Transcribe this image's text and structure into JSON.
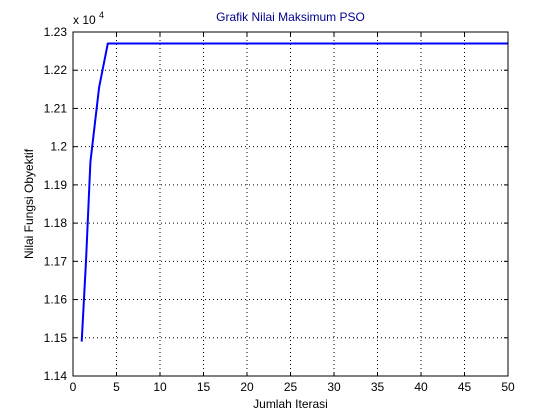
{
  "chart_data": {
    "type": "line",
    "title": "Grafik Nilai Maksimum PSO",
    "xlabel": "Jumlah Iterasi",
    "ylabel": "Nilai Fungsi Obyektif",
    "y_multiplier_base": "x 10",
    "y_multiplier_exponent": "4",
    "xlim": [
      0,
      50
    ],
    "ylim": [
      1.14,
      1.23
    ],
    "x_ticks": [
      0,
      5,
      10,
      15,
      20,
      25,
      30,
      35,
      40,
      45,
      50
    ],
    "x_tick_labels": [
      "0",
      "5",
      "10",
      "15",
      "20",
      "25",
      "30",
      "35",
      "40",
      "45",
      "50"
    ],
    "y_ticks": [
      1.14,
      1.15,
      1.16,
      1.17,
      1.18,
      1.19,
      1.2,
      1.21,
      1.22,
      1.23
    ],
    "y_tick_labels": [
      "1.14",
      "1.15",
      "1.16",
      "1.17",
      "1.18",
      "1.19",
      "1.2",
      "1.21",
      "1.22",
      "1.23"
    ],
    "grid": true,
    "series": [
      {
        "color": "#0000ff",
        "x": [
          1,
          1.5,
          2,
          3,
          4,
          50
        ],
        "y": [
          1.149,
          1.17,
          1.196,
          1.2155,
          1.227,
          1.227
        ]
      }
    ]
  },
  "colors": {
    "title": "#00008b",
    "series": "#0000ff",
    "axis": "#000000",
    "grid": "#000000"
  }
}
